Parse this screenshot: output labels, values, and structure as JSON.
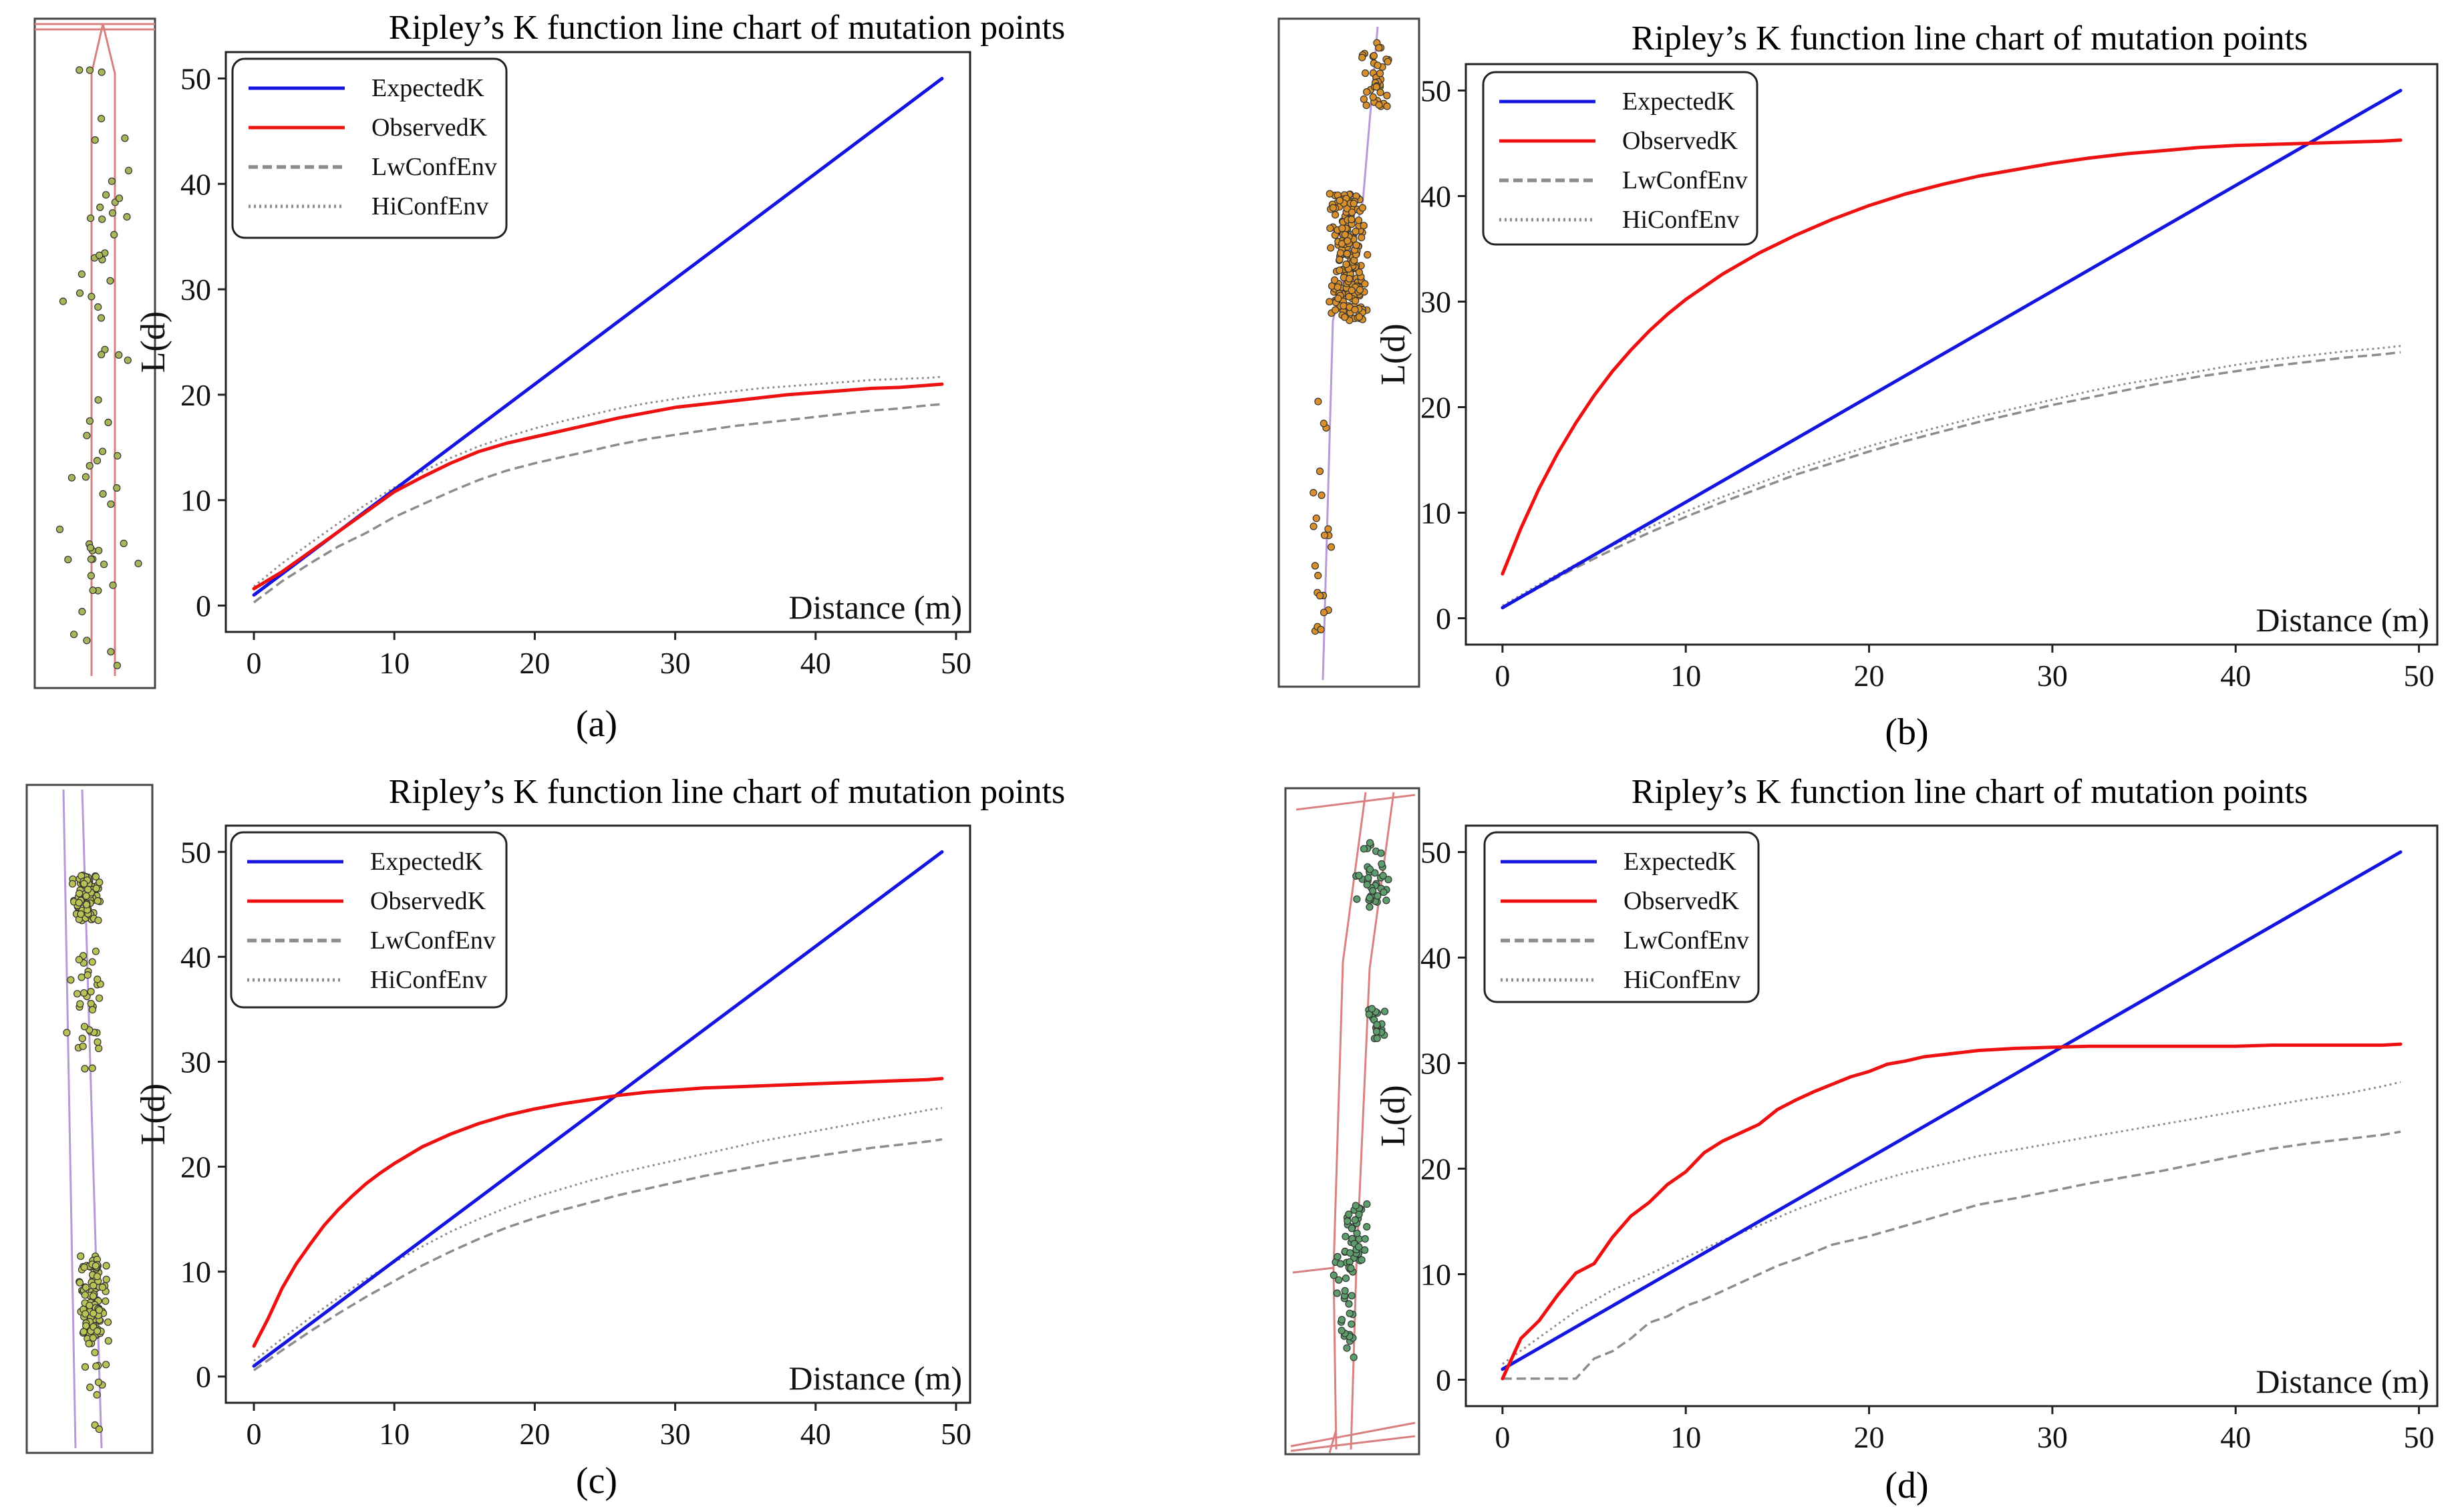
{
  "legend_labels": [
    "ExpectedK",
    "ObservedK",
    "LwConfEnv",
    "HiConfEnv"
  ],
  "colors": {
    "expected": "#1515e0",
    "observed": "#ee1111",
    "envelope": "#8c8c8c",
    "axis": "#222222",
    "frame": "#444444"
  },
  "chart_data": [
    {
      "panel": "(a)",
      "type": "line",
      "title": "Ripley’s K function line chart of mutation points",
      "xlabel": "Distance (m)",
      "ylabel": "L(d)",
      "xlim": [
        -2,
        51
      ],
      "ylim": [
        -2.5,
        52.5
      ],
      "xticks": [
        0,
        10,
        20,
        30,
        40,
        50
      ],
      "yticks": [
        0,
        10,
        20,
        30,
        40,
        50
      ],
      "grid": false,
      "legend_position": "top-left",
      "series": [
        {
          "name": "ExpectedK",
          "style": "solid",
          "x": [
            0,
            49
          ],
          "y": [
            1,
            50
          ]
        },
        {
          "name": "ObservedK",
          "style": "solid",
          "x": [
            0,
            2,
            4,
            6,
            8,
            10,
            12,
            14,
            16,
            18,
            20,
            22,
            24,
            26,
            28,
            30,
            32,
            34,
            36,
            38,
            40,
            42,
            44,
            46,
            48,
            49
          ],
          "y": [
            1.6,
            3.2,
            5.1,
            7.0,
            8.9,
            10.8,
            12.2,
            13.5,
            14.6,
            15.4,
            16.0,
            16.6,
            17.2,
            17.8,
            18.3,
            18.8,
            19.1,
            19.4,
            19.7,
            20.0,
            20.2,
            20.4,
            20.6,
            20.7,
            20.9,
            21.0
          ]
        },
        {
          "name": "LwConfEnv",
          "style": "dashed",
          "x": [
            0,
            2,
            4,
            6,
            8,
            10,
            12,
            14,
            16,
            18,
            20,
            22,
            24,
            26,
            28,
            30,
            32,
            34,
            36,
            38,
            40,
            42,
            44,
            46,
            48,
            49
          ],
          "y": [
            0.3,
            2.3,
            4.0,
            5.6,
            6.9,
            8.4,
            9.6,
            10.8,
            11.9,
            12.8,
            13.5,
            14.1,
            14.7,
            15.3,
            15.8,
            16.2,
            16.6,
            17.0,
            17.3,
            17.6,
            17.9,
            18.2,
            18.5,
            18.7,
            19.0,
            19.1
          ]
        },
        {
          "name": "HiConfEnv",
          "style": "dotted",
          "x": [
            0,
            2,
            4,
            6,
            8,
            10,
            12,
            14,
            16,
            18,
            20,
            22,
            24,
            26,
            28,
            30,
            32,
            34,
            36,
            38,
            40,
            42,
            44,
            46,
            48,
            49
          ],
          "y": [
            1.8,
            4.0,
            5.9,
            7.8,
            9.6,
            11.2,
            12.7,
            14.0,
            15.1,
            16.0,
            16.8,
            17.5,
            18.1,
            18.7,
            19.2,
            19.6,
            20.0,
            20.3,
            20.6,
            20.8,
            21.0,
            21.2,
            21.4,
            21.5,
            21.6,
            21.7
          ]
        }
      ]
    },
    {
      "panel": "(b)",
      "type": "line",
      "title": "Ripley’s K function line chart of mutation points",
      "xlabel": "Distance (m)",
      "ylabel": "L(d)",
      "xlim": [
        -2,
        51
      ],
      "ylim": [
        -2.5,
        52.5
      ],
      "xticks": [
        0,
        10,
        20,
        30,
        40,
        50
      ],
      "yticks": [
        0,
        10,
        20,
        30,
        40,
        50
      ],
      "grid": false,
      "legend_position": "top-left",
      "series": [
        {
          "name": "ExpectedK",
          "style": "solid",
          "x": [
            0,
            49
          ],
          "y": [
            1,
            50
          ]
        },
        {
          "name": "ObservedK",
          "style": "solid",
          "x": [
            0,
            1,
            2,
            3,
            4,
            5,
            6,
            7,
            8,
            9,
            10,
            12,
            14,
            16,
            18,
            20,
            22,
            24,
            26,
            28,
            30,
            32,
            34,
            36,
            38,
            40,
            42,
            44,
            46,
            48,
            49
          ],
          "y": [
            4.2,
            8.5,
            12.3,
            15.6,
            18.5,
            21.1,
            23.4,
            25.4,
            27.2,
            28.8,
            30.2,
            32.6,
            34.6,
            36.3,
            37.8,
            39.1,
            40.2,
            41.1,
            41.9,
            42.5,
            43.1,
            43.6,
            44.0,
            44.3,
            44.6,
            44.8,
            44.9,
            45.0,
            45.1,
            45.2,
            45.3
          ]
        },
        {
          "name": "LwConfEnv",
          "style": "dashed",
          "x": [
            0,
            2,
            4,
            6,
            8,
            10,
            12,
            14,
            16,
            18,
            20,
            22,
            24,
            26,
            28,
            30,
            32,
            34,
            36,
            38,
            40,
            42,
            44,
            46,
            48,
            49
          ],
          "y": [
            1.0,
            2.9,
            4.8,
            6.5,
            8.1,
            9.6,
            11.0,
            12.3,
            13.6,
            14.7,
            15.8,
            16.8,
            17.7,
            18.6,
            19.4,
            20.2,
            20.9,
            21.6,
            22.3,
            22.9,
            23.4,
            23.9,
            24.3,
            24.7,
            25.0,
            25.2
          ]
        },
        {
          "name": "HiConfEnv",
          "style": "dotted",
          "x": [
            0,
            2,
            4,
            6,
            8,
            10,
            12,
            14,
            16,
            18,
            20,
            22,
            24,
            26,
            28,
            30,
            32,
            34,
            36,
            38,
            40,
            42,
            44,
            46,
            48,
            49
          ],
          "y": [
            1.2,
            3.2,
            5.1,
            6.9,
            8.6,
            10.1,
            11.5,
            12.8,
            14.1,
            15.2,
            16.3,
            17.3,
            18.2,
            19.1,
            19.9,
            20.7,
            21.5,
            22.2,
            22.8,
            23.4,
            24.0,
            24.5,
            24.9,
            25.3,
            25.6,
            25.8
          ]
        }
      ]
    },
    {
      "panel": "(c)",
      "type": "line",
      "title": "Ripley’s K function line chart of mutation points",
      "xlabel": "Distance (m)",
      "ylabel": "L(d)",
      "xlim": [
        -2,
        51
      ],
      "ylim": [
        -2.5,
        52.5
      ],
      "xticks": [
        0,
        10,
        20,
        30,
        40,
        50
      ],
      "yticks": [
        0,
        10,
        20,
        30,
        40,
        50
      ],
      "grid": false,
      "legend_position": "top-left",
      "series": [
        {
          "name": "ExpectedK",
          "style": "solid",
          "x": [
            0,
            49
          ],
          "y": [
            1,
            50
          ]
        },
        {
          "name": "ObservedK",
          "style": "solid",
          "x": [
            0,
            1,
            2,
            3,
            4,
            5,
            6,
            7,
            8,
            9,
            10,
            12,
            14,
            16,
            18,
            20,
            22,
            24,
            26,
            28,
            30,
            32,
            34,
            36,
            38,
            40,
            42,
            44,
            46,
            48,
            49
          ],
          "y": [
            2.9,
            5.5,
            8.4,
            10.7,
            12.6,
            14.4,
            15.9,
            17.2,
            18.4,
            19.4,
            20.3,
            21.9,
            23.1,
            24.1,
            24.9,
            25.5,
            26.0,
            26.4,
            26.8,
            27.1,
            27.3,
            27.5,
            27.6,
            27.7,
            27.8,
            27.9,
            28.0,
            28.1,
            28.2,
            28.3,
            28.4
          ]
        },
        {
          "name": "LwConfEnv",
          "style": "dashed",
          "x": [
            0,
            2,
            4,
            6,
            8,
            10,
            12,
            14,
            16,
            18,
            20,
            22,
            24,
            26,
            28,
            30,
            32,
            34,
            36,
            38,
            40,
            42,
            44,
            46,
            48,
            49
          ],
          "y": [
            0.6,
            2.5,
            4.3,
            6.0,
            7.6,
            9.1,
            10.6,
            11.9,
            13.1,
            14.2,
            15.1,
            15.9,
            16.6,
            17.3,
            17.9,
            18.5,
            19.1,
            19.6,
            20.1,
            20.6,
            21.0,
            21.4,
            21.8,
            22.1,
            22.4,
            22.6
          ]
        },
        {
          "name": "HiConfEnv",
          "style": "dotted",
          "x": [
            0,
            2,
            4,
            6,
            8,
            10,
            12,
            14,
            16,
            18,
            20,
            22,
            24,
            26,
            28,
            30,
            32,
            34,
            36,
            38,
            40,
            42,
            44,
            46,
            48,
            49
          ],
          "y": [
            1.5,
            3.6,
            5.6,
            7.5,
            9.3,
            10.9,
            12.4,
            13.8,
            15.0,
            16.1,
            17.1,
            17.9,
            18.7,
            19.4,
            20.0,
            20.6,
            21.2,
            21.8,
            22.4,
            22.9,
            23.4,
            23.9,
            24.4,
            24.9,
            25.4,
            25.6
          ]
        }
      ]
    },
    {
      "panel": "(d)",
      "type": "line",
      "title": "Ripley’s K function line chart of mutation points",
      "xlabel": "Distance (m)",
      "ylabel": "L(d)",
      "xlim": [
        -2,
        51
      ],
      "ylim": [
        -2.5,
        52.5
      ],
      "xticks": [
        0,
        10,
        20,
        30,
        40,
        50
      ],
      "yticks": [
        0,
        10,
        20,
        30,
        40,
        50
      ],
      "grid": false,
      "legend_position": "top-left",
      "series": [
        {
          "name": "ExpectedK",
          "style": "solid",
          "x": [
            0,
            49
          ],
          "y": [
            1,
            50
          ]
        },
        {
          "name": "ObservedK",
          "style": "solid",
          "x": [
            0,
            1,
            2,
            3,
            4,
            5,
            6,
            7,
            8,
            9,
            10,
            11,
            12,
            13,
            14,
            15,
            16,
            17,
            18,
            19,
            20,
            21,
            22,
            23,
            24,
            25,
            26,
            27,
            28,
            30,
            32,
            34,
            36,
            38,
            40,
            42,
            44,
            46,
            48,
            49
          ],
          "y": [
            0.1,
            3.9,
            5.6,
            8.0,
            10.1,
            11.0,
            13.5,
            15.5,
            16.8,
            18.5,
            19.7,
            21.5,
            22.6,
            23.4,
            24.2,
            25.6,
            26.5,
            27.3,
            28.0,
            28.7,
            29.2,
            29.9,
            30.2,
            30.6,
            30.8,
            31.0,
            31.2,
            31.3,
            31.4,
            31.5,
            31.6,
            31.6,
            31.6,
            31.6,
            31.6,
            31.7,
            31.7,
            31.7,
            31.7,
            31.8
          ]
        },
        {
          "name": "LwConfEnv",
          "style": "dashed",
          "x": [
            0,
            2,
            4,
            5,
            6,
            7,
            8,
            9,
            10,
            11,
            12,
            13,
            14,
            15,
            16,
            18,
            20,
            22,
            24,
            26,
            28,
            30,
            32,
            34,
            36,
            38,
            40,
            42,
            44,
            46,
            48,
            49
          ],
          "y": [
            0.1,
            0.1,
            0.1,
            2.0,
            2.7,
            3.9,
            5.4,
            6.0,
            7.0,
            7.6,
            8.4,
            9.2,
            10.0,
            10.8,
            11.4,
            12.8,
            13.6,
            14.6,
            15.6,
            16.6,
            17.2,
            17.9,
            18.6,
            19.2,
            19.8,
            20.5,
            21.2,
            21.9,
            22.4,
            22.8,
            23.2,
            23.5
          ]
        },
        {
          "name": "HiConfEnv",
          "style": "dotted",
          "x": [
            0,
            2,
            4,
            6,
            8,
            10,
            12,
            14,
            16,
            18,
            20,
            22,
            24,
            26,
            28,
            30,
            32,
            34,
            36,
            38,
            40,
            42,
            44,
            46,
            48,
            49
          ],
          "y": [
            1.5,
            4.0,
            6.5,
            8.5,
            10.0,
            11.6,
            13.2,
            14.6,
            16.1,
            17.4,
            18.6,
            19.6,
            20.4,
            21.2,
            21.8,
            22.4,
            23.0,
            23.6,
            24.2,
            24.8,
            25.4,
            26.0,
            26.6,
            27.1,
            27.8,
            28.2
          ]
        }
      ]
    }
  ]
}
